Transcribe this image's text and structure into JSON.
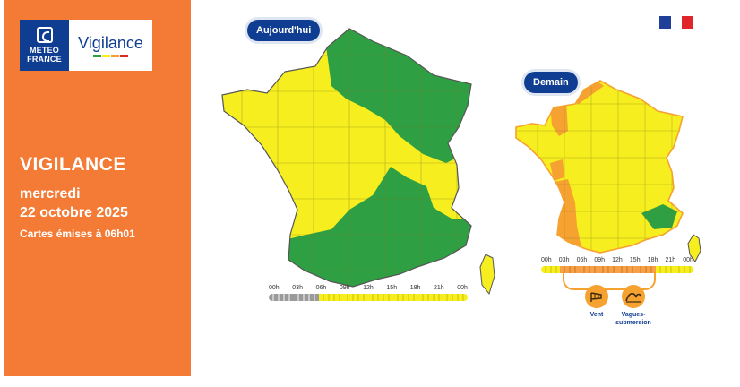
{
  "brand": {
    "org_line1": "METEO",
    "org_line2": "FRANCE",
    "product": "Vigilance"
  },
  "headline": {
    "title": "VIGILANCE",
    "day": "mercredi",
    "date": "22 octobre 2025",
    "issued": "Cartes émises à 06h01"
  },
  "maps": {
    "today": {
      "label": "Aujourd'hui",
      "hours": [
        "00h",
        "03h",
        "06h",
        "09h",
        "12h",
        "15h",
        "18h",
        "21h",
        "00h"
      ],
      "timeline": [
        "grey",
        "grey",
        "yellow",
        "yellow",
        "yellow",
        "yellow",
        "yellow",
        "yellow"
      ]
    },
    "tomorrow": {
      "label": "Demain",
      "hours": [
        "00h",
        "03h",
        "06h",
        "09h",
        "12h",
        "15h",
        "18h",
        "21h",
        "00h"
      ],
      "timeline": [
        "yellow",
        "orange",
        "orange",
        "orange",
        "orange",
        "orange",
        "yellow",
        "yellow"
      ]
    }
  },
  "hazards": [
    {
      "icon": "wind-icon",
      "label_line1": "Vent",
      "label_line2": ""
    },
    {
      "icon": "waves-submersion-icon",
      "label_line1": "Vagues-",
      "label_line2": "submersion"
    }
  ],
  "colors": {
    "panel_orange": "#f47b35",
    "brand_blue": "#0f3d91",
    "vigilance_green": "#2ea043",
    "vigilance_yellow": "#f6ee1f",
    "vigilance_orange": "#f6a230",
    "vigilance_red": "#e2251f",
    "flag_blue": "#1f3f9b",
    "flag_red": "#e1262b"
  }
}
